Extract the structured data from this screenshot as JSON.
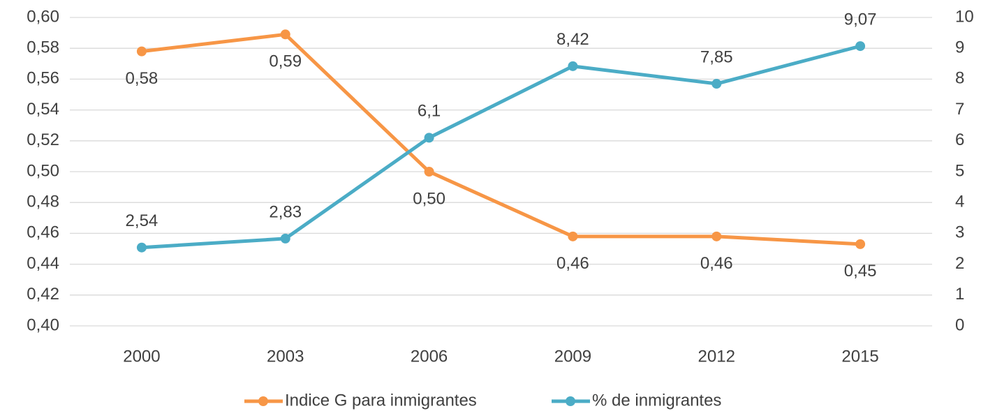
{
  "chart_data": {
    "type": "line",
    "categories": [
      "2000",
      "2003",
      "2006",
      "2009",
      "2012",
      "2015"
    ],
    "series": [
      {
        "name": "Indice G para inmigrantes",
        "color": "#f79646",
        "axis": "y",
        "values": [
          0.578,
          0.589,
          0.5,
          0.458,
          0.458,
          0.453
        ],
        "value_labels": [
          "0,58",
          "0,59",
          "0,50",
          "0,46",
          "0,46",
          "0,45"
        ]
      },
      {
        "name": "% de inmigrantes",
        "color": "#4bacc6",
        "axis": "y2",
        "values": [
          2.54,
          2.83,
          6.1,
          8.42,
          7.85,
          9.07
        ],
        "value_labels": [
          "2,54",
          "2,83",
          "6,1",
          "8,42",
          "7,85",
          "9,07"
        ]
      }
    ],
    "ylim": [
      0.4,
      0.6
    ],
    "yticks": [
      {
        "value": 0.4,
        "label": "0,40"
      },
      {
        "value": 0.42,
        "label": "0,42"
      },
      {
        "value": 0.44,
        "label": "0,44"
      },
      {
        "value": 0.46,
        "label": "0,46"
      },
      {
        "value": 0.48,
        "label": "0,48"
      },
      {
        "value": 0.5,
        "label": "0,50"
      },
      {
        "value": 0.52,
        "label": "0,52"
      },
      {
        "value": 0.54,
        "label": "0,54"
      },
      {
        "value": 0.56,
        "label": "0,56"
      },
      {
        "value": 0.58,
        "label": "0,58"
      },
      {
        "value": 0.6,
        "label": "0,60"
      }
    ],
    "y2lim": [
      0,
      10
    ],
    "y2ticks": [
      0,
      1,
      2,
      3,
      4,
      5,
      6,
      7,
      8,
      9,
      10
    ],
    "grid": true,
    "legend": "bottom"
  }
}
